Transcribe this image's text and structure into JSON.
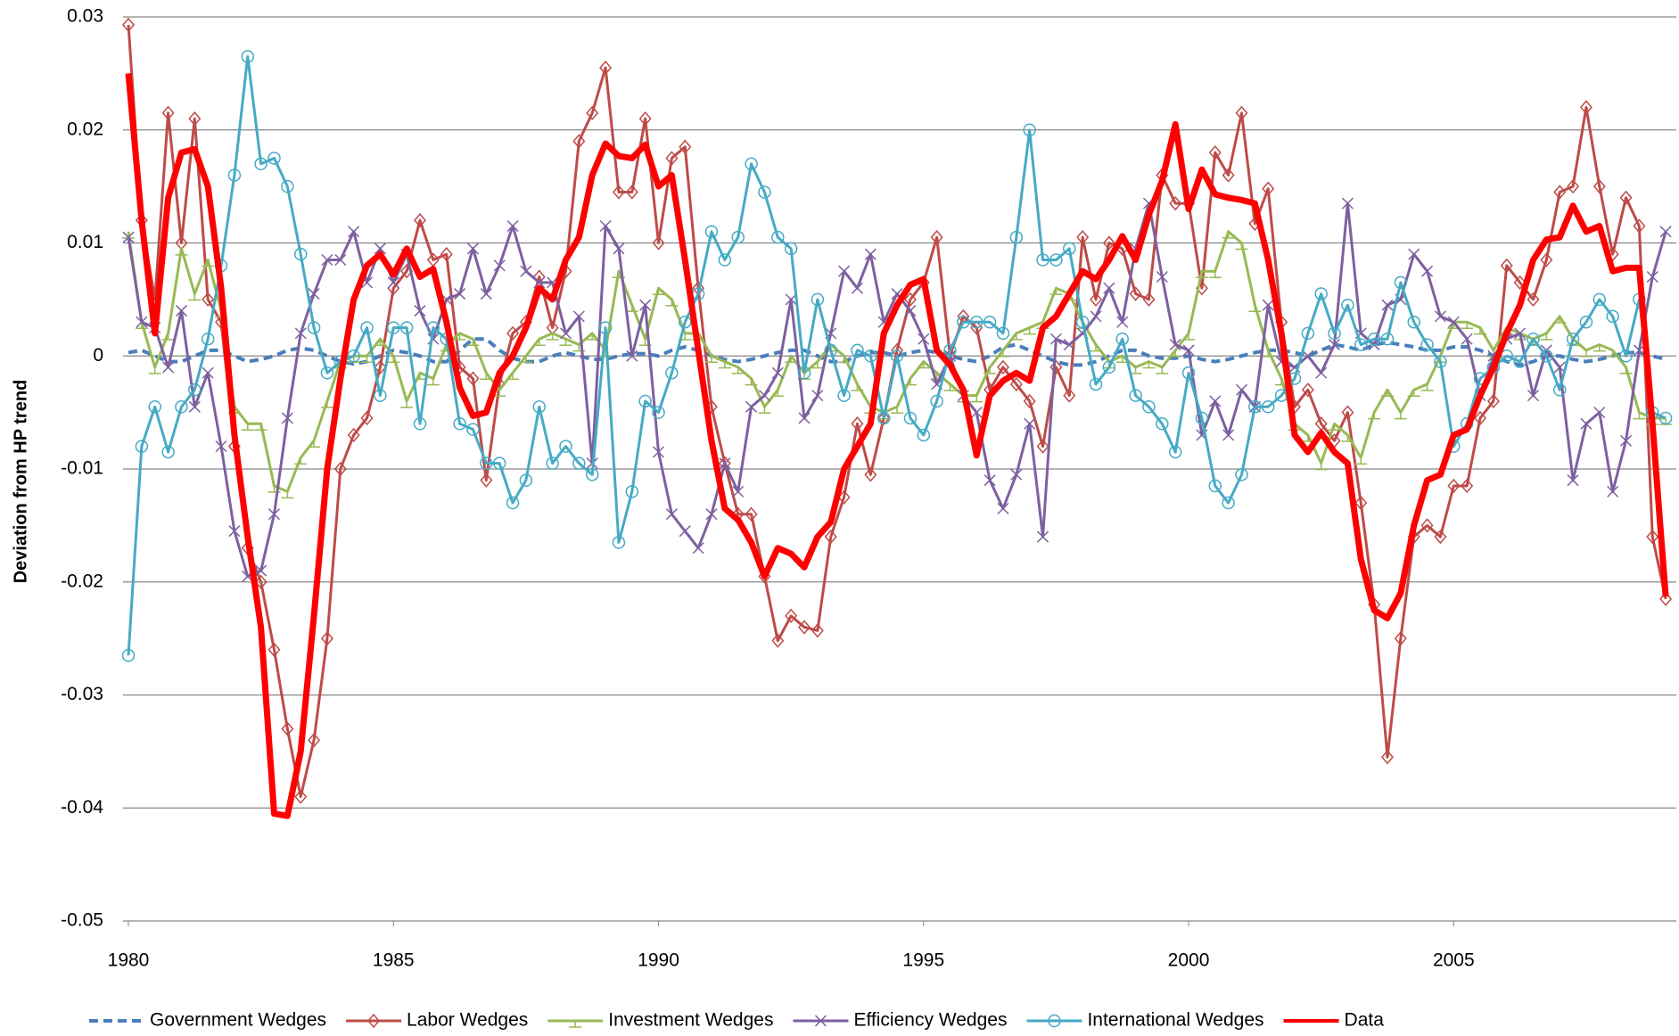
{
  "chart_data": {
    "type": "line",
    "y_label": "Deviation from HP trend",
    "xlim": [
      1980,
      2009.2
    ],
    "xticks": [
      1980,
      1985,
      1990,
      1995,
      2000,
      2005
    ],
    "ylim": [
      -0.05,
      0.03
    ],
    "yticks": [
      -0.05,
      -0.04,
      -0.03,
      -0.02,
      -0.01,
      0,
      0.01,
      0.02,
      0.03
    ],
    "grid": true,
    "legend": "bottom",
    "x": [
      1980,
      1980.25,
      1980.5,
      1980.75,
      1981,
      1981.25,
      1981.5,
      1981.75,
      1982,
      1982.25,
      1982.5,
      1982.75,
      1983,
      1983.25,
      1983.5,
      1983.75,
      1984,
      1984.25,
      1984.5,
      1984.75,
      1985,
      1985.25,
      1985.5,
      1985.75,
      1986,
      1986.25,
      1986.5,
      1986.75,
      1987,
      1987.25,
      1987.5,
      1987.75,
      1988,
      1988.25,
      1988.5,
      1988.75,
      1989,
      1989.25,
      1989.5,
      1989.75,
      1990,
      1990.25,
      1990.5,
      1990.75,
      1991,
      1991.25,
      1991.5,
      1991.75,
      1992,
      1992.25,
      1992.5,
      1992.75,
      1993,
      1993.25,
      1993.5,
      1993.75,
      1994,
      1994.25,
      1994.5,
      1994.75,
      1995,
      1995.25,
      1995.5,
      1995.75,
      1996,
      1996.25,
      1996.5,
      1996.75,
      1997,
      1997.25,
      1997.5,
      1997.75,
      1998,
      1998.25,
      1998.5,
      1998.75,
      1999,
      1999.25,
      1999.5,
      1999.75,
      2000,
      2000.25,
      2000.5,
      2000.75,
      2001,
      2001.25,
      2001.5,
      2001.75,
      2002,
      2002.25,
      2002.5,
      2002.75,
      2003,
      2003.25,
      2003.5,
      2003.75,
      2004,
      2004.25,
      2004.5,
      2004.75,
      2005,
      2005.25,
      2005.5,
      2005.75,
      2006,
      2006.25,
      2006.5,
      2006.75,
      2007,
      2007.25,
      2007.5,
      2007.75,
      2008,
      2008.25,
      2008.5,
      2008.75,
      2009
    ],
    "series": [
      {
        "name": "Government Wedges",
        "color": "#4a7ebb",
        "dash": true,
        "width": 4,
        "marker": "none",
        "values": [
          0.0003,
          0.0005,
          0.0,
          -0.0005,
          -0.0005,
          0.0,
          0.0005,
          0.0005,
          0.0,
          -0.0005,
          -0.0003,
          0.0,
          0.0005,
          0.0007,
          0.0005,
          0.0,
          -0.0005,
          -0.0007,
          -0.0005,
          0.0,
          0.0005,
          0.0003,
          0.0,
          -0.0005,
          -0.0005,
          0.0005,
          0.0015,
          0.0015,
          0.0005,
          -0.0002,
          -0.0005,
          -0.0005,
          0.0,
          0.0003,
          0.0,
          -0.0003,
          -0.0003,
          0.0,
          0.0002,
          0.0002,
          0.0,
          0.0005,
          0.0008,
          0.0005,
          0.0,
          -0.0003,
          -0.0005,
          -0.0003,
          0.0,
          0.0003,
          0.0005,
          0.0005,
          0.0,
          -0.0005,
          -0.0005,
          0.0,
          0.0003,
          0.0003,
          0.0,
          0.0003,
          0.0005,
          0.0003,
          0.0,
          -0.0003,
          -0.0005,
          0.0,
          0.0008,
          0.001,
          0.0005,
          0.0,
          -0.0005,
          -0.0008,
          -0.0008,
          -0.0005,
          0.0,
          0.0005,
          0.0005,
          0.0,
          -0.0002,
          -0.0002,
          0.0,
          -0.0003,
          -0.0005,
          -0.0003,
          0.0,
          0.0003,
          0.0005,
          0.0005,
          0.0003,
          0.0,
          0.0005,
          0.001,
          0.0008,
          0.0005,
          0.001,
          0.0012,
          0.001,
          0.0008,
          0.0005,
          0.0005,
          0.0008,
          0.0008,
          0.0005,
          0.0,
          -0.0005,
          -0.0008,
          -0.0005,
          0.0,
          0.0,
          -0.0003,
          -0.0005,
          -0.0003,
          0.0,
          0.0003,
          0.0003,
          0.0,
          -0.0003
        ]
      },
      {
        "name": "Labor Wedges",
        "color": "#be4b48",
        "width": 3,
        "marker": "diamond",
        "values": [
          0.0293,
          0.012,
          0.005,
          0.0215,
          0.01,
          0.021,
          0.005,
          0.003,
          -0.008,
          -0.017,
          -0.02,
          -0.026,
          -0.033,
          -0.039,
          -0.034,
          -0.025,
          -0.01,
          -0.007,
          -0.0055,
          -0.001,
          0.006,
          0.0075,
          0.012,
          0.0085,
          0.009,
          -0.001,
          -0.002,
          -0.011,
          -0.0025,
          0.002,
          0.003,
          0.007,
          0.0025,
          0.0075,
          0.019,
          0.0215,
          0.0255,
          0.0145,
          0.0145,
          0.021,
          0.01,
          0.0175,
          0.0185,
          0.006,
          -0.0045,
          -0.0095,
          -0.014,
          -0.014,
          -0.0195,
          -0.0252,
          -0.023,
          -0.024,
          -0.0243,
          -0.016,
          -0.0125,
          -0.006,
          -0.0105,
          -0.0055,
          0.0005,
          0.005,
          0.0065,
          0.0105,
          0,
          0.0035,
          0.0025,
          -0.003,
          -0.001,
          -0.0025,
          -0.004,
          -0.008,
          -0.001,
          -0.0035,
          0.0105,
          0.005,
          0.01,
          0.0095,
          0.0055,
          0.005,
          0.016,
          0.0135,
          0.0135,
          0.006,
          0.018,
          0.016,
          0.0215,
          0.0117,
          0.0148,
          0.003,
          -0.0045,
          -0.003,
          -0.006,
          -0.0075,
          -0.005,
          -0.013,
          -0.022,
          -0.0355,
          -0.025,
          -0.016,
          -0.015,
          -0.016,
          -0.0115,
          -0.0115,
          -0.0055,
          -0.004,
          0.008,
          0.0065,
          0.005,
          0.0085,
          0.0145,
          0.015,
          0.022,
          0.015,
          0.009,
          0.014,
          0.0115,
          -0.016,
          -0.0215
        ]
      },
      {
        "name": "Investment Wedges",
        "color": "#98b954",
        "width": 3,
        "marker": "tee",
        "values": [
          0.011,
          0.003,
          -0.001,
          0.002,
          0.0095,
          0.0055,
          0.0085,
          0.004,
          -0.0045,
          -0.006,
          -0.006,
          -0.0115,
          -0.012,
          -0.009,
          -0.0075,
          -0.004,
          -0.0005,
          0,
          0,
          0.0015,
          0,
          -0.004,
          -0.0015,
          -0.002,
          0.001,
          0.002,
          0.0015,
          -0.0015,
          -0.003,
          -0.0015,
          0,
          0.0015,
          0.002,
          0.0015,
          0.001,
          0.002,
          0.0005,
          0.0075,
          0.0045,
          0.0015,
          0.006,
          0.005,
          0.002,
          0.002,
          0,
          -0.0005,
          -0.001,
          -0.002,
          -0.0045,
          -0.003,
          0,
          -0.0015,
          -0.0005,
          0.001,
          0,
          -0.0025,
          -0.0045,
          -0.005,
          -0.0045,
          -0.002,
          -0.0005,
          -0.0015,
          -0.0025,
          -0.0035,
          -0.0035,
          -0.001,
          0.0005,
          0.002,
          0.0025,
          0.003,
          0.006,
          0.0055,
          0.003,
          0.001,
          -0.0005,
          0,
          -0.001,
          -0.0005,
          -0.001,
          0.0005,
          0.002,
          0.0075,
          0.0075,
          0.011,
          0.01,
          0.0045,
          0.0005,
          -0.002,
          -0.006,
          -0.007,
          -0.0095,
          -0.006,
          -0.007,
          -0.009,
          -0.005,
          -0.003,
          -0.005,
          -0.003,
          -0.0025,
          0,
          0.003,
          0.003,
          0.0025,
          0.0005,
          0.0025,
          0.002,
          0.0015,
          0.002,
          0.0035,
          0.0015,
          0.0005,
          0.001,
          0.0005,
          -0.001,
          -0.005,
          -0.0055,
          -0.0055
        ]
      },
      {
        "name": "Efficiency Wedges",
        "color": "#7d60a0",
        "width": 3,
        "marker": "cross",
        "values": [
          0.0105,
          0.003,
          0.0025,
          -0.001,
          0.004,
          -0.0045,
          -0.0015,
          -0.008,
          -0.0155,
          -0.0195,
          -0.019,
          -0.014,
          -0.0055,
          0.002,
          0.0055,
          0.0085,
          0.0085,
          0.011,
          0.0065,
          0.0095,
          0.0065,
          0.009,
          0.004,
          0.0015,
          0.005,
          0.0055,
          0.0095,
          0.0055,
          0.008,
          0.0115,
          0.0075,
          0.0065,
          0.0065,
          0.002,
          0.0035,
          -0.0095,
          0.0115,
          0.0095,
          0,
          0.0045,
          -0.0085,
          -0.014,
          -0.0155,
          -0.017,
          -0.014,
          -0.0095,
          -0.012,
          -0.0045,
          -0.0035,
          -0.0015,
          0.005,
          -0.0055,
          -0.0035,
          0.002,
          0.0075,
          0.006,
          0.009,
          0.003,
          0.0055,
          0.004,
          0.0015,
          -0.0025,
          0,
          -0.0035,
          -0.005,
          -0.011,
          -0.0135,
          -0.0105,
          -0.006,
          -0.016,
          0.0015,
          0.001,
          0.002,
          0.0035,
          0.006,
          0.003,
          0.0095,
          0.0135,
          0.007,
          0.001,
          0.0005,
          -0.007,
          -0.004,
          -0.007,
          -0.003,
          -0.0045,
          0.0045,
          -0.0005,
          -0.001,
          0,
          -0.0015,
          0.001,
          0.0135,
          0.002,
          0.001,
          0.0045,
          0.005,
          0.009,
          0.0075,
          0.0035,
          0.003,
          0.0015,
          -0.0035,
          0,
          0.0015,
          0.002,
          -0.0035,
          0.0005,
          -0.001,
          -0.011,
          -0.006,
          -0.005,
          -0.012,
          -0.0075,
          0.0005,
          0.007,
          0.011
        ]
      },
      {
        "name": "International Wedges",
        "color": "#46aac5",
        "width": 3,
        "marker": "circle",
        "values": [
          -0.0265,
          -0.008,
          -0.0045,
          -0.0085,
          -0.0045,
          -0.003,
          0.0015,
          0.008,
          0.016,
          0.0265,
          0.017,
          0.0175,
          0.015,
          0.009,
          0.0025,
          -0.0015,
          -0.0005,
          0,
          0.0025,
          -0.0035,
          0.0025,
          0.0025,
          -0.006,
          0.0025,
          0.0015,
          -0.006,
          -0.0065,
          -0.0095,
          -0.0095,
          -0.013,
          -0.011,
          -0.0045,
          -0.0095,
          -0.008,
          -0.0095,
          -0.0105,
          0.0025,
          -0.0165,
          -0.012,
          -0.004,
          -0.005,
          -0.0015,
          0.003,
          0.0055,
          0.011,
          0.0085,
          0.0105,
          0.017,
          0.0145,
          0.0105,
          0.0095,
          -0.0015,
          0.005,
          0.0005,
          -0.0035,
          0.0005,
          0,
          -0.0055,
          0,
          -0.0055,
          -0.007,
          -0.004,
          0.0005,
          0.003,
          0.003,
          0.003,
          0.002,
          0.0105,
          0.02,
          0.0085,
          0.0085,
          0.0095,
          0.003,
          -0.0025,
          -0.001,
          0.0015,
          -0.0035,
          -0.0045,
          -0.006,
          -0.0085,
          -0.0015,
          -0.0055,
          -0.0115,
          -0.013,
          -0.0105,
          -0.0045,
          -0.0045,
          -0.0035,
          -0.002,
          0.002,
          0.0055,
          0.002,
          0.0045,
          0.001,
          0.0015,
          0.0015,
          0.0065,
          0.003,
          0.001,
          -0.0005,
          -0.008,
          -0.006,
          -0.002,
          -0.001,
          0,
          -0.0005,
          0.0015,
          0,
          -0.003,
          0.0015,
          0.003,
          0.005,
          0.0035,
          0,
          0.005,
          -0.005,
          -0.0055
        ]
      },
      {
        "name": "Data",
        "color": "#ff0000",
        "width": 7,
        "marker": "none",
        "values": [
          0.025,
          0.012,
          0.002,
          0.014,
          0.018,
          0.0183,
          0.015,
          0.006,
          -0.007,
          -0.016,
          -0.024,
          -0.0405,
          -0.0407,
          -0.035,
          -0.023,
          -0.01,
          -0.002,
          0.005,
          0.008,
          0.009,
          0.0072,
          0.0095,
          0.007,
          0.0077,
          0.003,
          -0.0028,
          -0.0053,
          -0.005,
          -0.0015,
          0,
          0.0025,
          0.006,
          0.005,
          0.0085,
          0.0105,
          0.016,
          0.0188,
          0.0177,
          0.0175,
          0.0187,
          0.015,
          0.016,
          0.0085,
          0.0005,
          -0.0075,
          -0.0135,
          -0.0145,
          -0.0165,
          -0.0195,
          -0.017,
          -0.0175,
          -0.0187,
          -0.016,
          -0.0147,
          -0.01,
          -0.008,
          -0.006,
          0.002,
          0.0045,
          0.0063,
          0.0068,
          0.0005,
          -0.0008,
          -0.003,
          -0.0088,
          -0.0035,
          -0.0022,
          -0.0015,
          -0.0022,
          0.0025,
          0.0035,
          0.0055,
          0.0075,
          0.0068,
          0.0085,
          0.0106,
          0.0085,
          0.0125,
          0.0155,
          0.0205,
          0.013,
          0.0165,
          0.0143,
          0.014,
          0.0138,
          0.0135,
          0.0085,
          0.002,
          -0.007,
          -0.0085,
          -0.0068,
          -0.0085,
          -0.0095,
          -0.018,
          -0.0225,
          -0.0232,
          -0.021,
          -0.015,
          -0.011,
          -0.0105,
          -0.007,
          -0.0065,
          -0.0035,
          -0.001,
          0.002,
          0.0045,
          0.0085,
          0.0103,
          0.0105,
          0.0133,
          0.011,
          0.0115,
          0.0075,
          0.0078,
          0.0078,
          -0.006,
          -0.0213
        ]
      }
    ]
  }
}
